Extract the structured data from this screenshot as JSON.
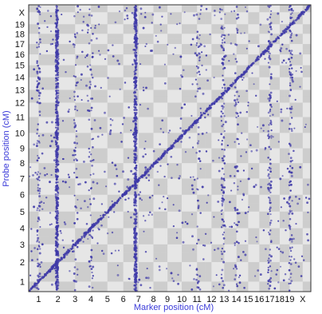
{
  "chart_data": {
    "type": "scatter",
    "xlabel": "Marker position (cM)",
    "ylabel": "Probe position (cM)",
    "chromosomes": [
      "1",
      "2",
      "3",
      "4",
      "5",
      "6",
      "7",
      "8",
      "9",
      "10",
      "11",
      "12",
      "13",
      "14",
      "15",
      "16",
      "17",
      "18",
      "19",
      "X"
    ],
    "x_chromosome_lengths": [
      1.0,
      0.95,
      0.78,
      0.82,
      0.84,
      0.76,
      0.78,
      0.72,
      0.7,
      0.74,
      0.8,
      0.66,
      0.62,
      0.62,
      0.56,
      0.56,
      0.5,
      0.5,
      0.5,
      0.82
    ],
    "y_chromosome_lengths": [
      1.0,
      0.95,
      0.82,
      0.8,
      0.86,
      0.82,
      0.8,
      0.74,
      0.74,
      0.8,
      0.78,
      0.66,
      0.62,
      0.64,
      0.56,
      0.52,
      0.52,
      0.5,
      0.46,
      0.74
    ],
    "trans_hotspots": [
      {
        "chromosome": "2",
        "position": 0.45,
        "density": "very high"
      },
      {
        "chromosome": "7",
        "position": 0.3,
        "density": "very high"
      },
      {
        "chromosome": "1",
        "position": 0.5,
        "density": "medium"
      },
      {
        "chromosome": "3",
        "position": 0.55,
        "density": "low"
      },
      {
        "chromosome": "4",
        "position": 0.5,
        "density": "low"
      },
      {
        "chromosome": "11",
        "position": 0.6,
        "density": "low"
      },
      {
        "chromosome": "13",
        "position": 0.4,
        "density": "medium"
      },
      {
        "chromosome": "14",
        "position": 0.5,
        "density": "low"
      },
      {
        "chromosome": "17",
        "position": 0.5,
        "density": "medium"
      },
      {
        "chromosome": "19",
        "position": 0.6,
        "density": "medium"
      }
    ],
    "cis_diagonal": true,
    "background": "alternating grey checkerboard by chromosome pair",
    "colors": {
      "points": "#3f3aa8",
      "checker_light": "#e6e6e6",
      "checker_dark": "#cdcdcd",
      "axis_title": "#3b3bd9",
      "border": "#333333"
    }
  }
}
